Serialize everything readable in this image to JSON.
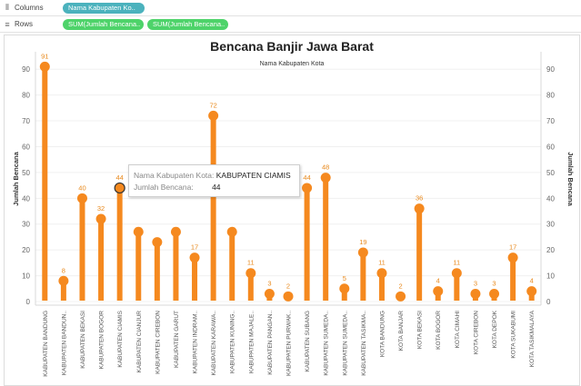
{
  "shelves": {
    "columns": {
      "label": "Columns",
      "icon": "columns-icon",
      "pills": [
        "Nama Kabupaten Ko.."
      ]
    },
    "rows": {
      "label": "Rows",
      "icon": "rows-icon",
      "pills": [
        "SUM(Jumlah Bencana..",
        "SUM(Jumlah Bencana.."
      ]
    }
  },
  "colors": {
    "mark": "#f5891f",
    "dimension_pill": "#4bb2bd",
    "measure_pill": "#4ed36a"
  },
  "chart_data": {
    "type": "lollipop",
    "title": "Bencana Banjir Jawa Barat",
    "x_field_label": "Nama Kabupaten Kota",
    "ylabel_left": "Jumlah Bencana",
    "ylabel_right": "Jumlah Bencana",
    "ylim": [
      0,
      95
    ],
    "yticks": [
      0,
      10,
      20,
      30,
      40,
      50,
      60,
      70,
      80,
      90
    ],
    "grid": true,
    "categories": [
      "KABUPATEN BANDUNG",
      "KABUPATEN BANDUN..",
      "KABUPATEN BEKASI",
      "KABUPATEN BOGOR",
      "KABUPATEN CIAMIS",
      "KABUPATEN CIANJUR",
      "KABUPATEN CIREBON",
      "KABUPATEN GARUT",
      "KABUPATEN INDRAM..",
      "KABUPATEN KARAWA..",
      "KABUPATEN KUNING..",
      "KABUPATEN MAJALE..",
      "KABUPATEN PANGAN..",
      "KABUPATEN PURWAK..",
      "KABUPATEN SUBANG",
      "KABUPATEN SUMEDA..",
      "KABUPATEN SUMEDA..",
      "KABUPATEN TASIKMA..",
      "KOTA BANDUNG",
      "KOTA BANJAR",
      "KOTA BEKASI",
      "KOTA BOGOR",
      "KOTA CIMAHI",
      "KOTA CIREBON",
      "KOTA DEPOK",
      "KOTA SUKABUMI",
      "KOTA TASIKMALAYA"
    ],
    "values": [
      91,
      8,
      40,
      32,
      44,
      27,
      23,
      27,
      17,
      72,
      27,
      11,
      3,
      2,
      44,
      48,
      5,
      19,
      11,
      2,
      36,
      4,
      11,
      3,
      3,
      17,
      4
    ],
    "labels_shown": [
      "91",
      "8",
      "40",
      "32",
      "44",
      "",
      "",
      "",
      "17",
      "72",
      "",
      "11",
      "3",
      "2",
      "44",
      "48",
      "5",
      "19",
      "11",
      "2",
      "36",
      "4",
      "11",
      "3",
      "3",
      "17",
      "4"
    ],
    "highlighted_index": 4
  },
  "tooltip": {
    "row1_label": "Nama Kabupaten Kota:",
    "row1_value": "KABUPATEN CIAMIS",
    "row2_label": "Jumlah Bencana:",
    "row2_value": "44"
  }
}
